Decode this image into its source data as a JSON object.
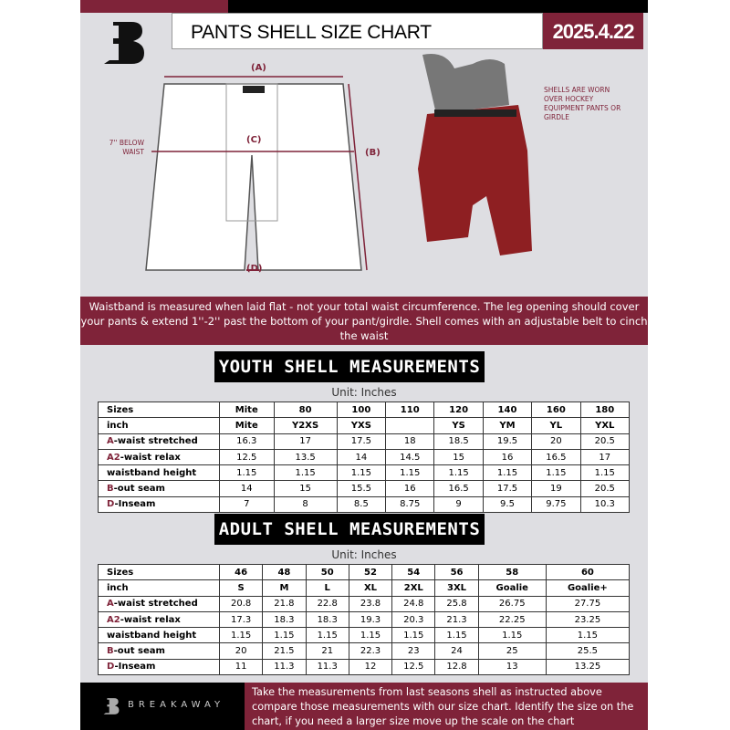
{
  "header": {
    "title": "PANTS SHELL SIZE CHART",
    "date": "2025.4.22"
  },
  "diagram": {
    "label_a": "(A)",
    "label_b": "(B)",
    "label_c": "(C)",
    "label_d": "(D)",
    "below_waist_note": "7'' BELOW WAIST",
    "worn_note": "SHELLS ARE WORN OVER HOCKEY EQUIPMENT PANTS OR GIRDLE"
  },
  "banner": {
    "text": "Waistband is measured when laid flat - not your total waist circumference. The leg opening should cover your pants & extend 1''-2'' past the bottom of your pant/girdle. Shell comes with an adjustable belt to cinch the waist"
  },
  "youth": {
    "title": "YOUTH SHELL MEASUREMENTS",
    "unit": "Unit: Inches",
    "rows": [
      {
        "p": "",
        "l": "Sizes",
        "v": [
          "Mite",
          "80",
          "100",
          "110",
          "120",
          "140",
          "160",
          "180"
        ]
      },
      {
        "p": "",
        "l": "inch",
        "v": [
          "Mite",
          "Y2XS",
          "YXS",
          "",
          "YS",
          "YM",
          "YL",
          "YXL"
        ]
      },
      {
        "p": "A",
        "l": "-waist stretched",
        "v": [
          "16.3",
          "17",
          "17.5",
          "18",
          "18.5",
          "19.5",
          "20",
          "20.5"
        ]
      },
      {
        "p": "A2",
        "l": "-waist relax",
        "v": [
          "12.5",
          "13.5",
          "14",
          "14.5",
          "15",
          "16",
          "16.5",
          "17"
        ]
      },
      {
        "p": "",
        "l": "waistband height",
        "v": [
          "1.15",
          "1.15",
          "1.15",
          "1.15",
          "1.15",
          "1.15",
          "1.15",
          "1.15"
        ]
      },
      {
        "p": "B",
        "l": "-out seam",
        "v": [
          "14",
          "15",
          "15.5",
          "16",
          "16.5",
          "17.5",
          "19",
          "20.5"
        ]
      },
      {
        "p": "D",
        "l": "-Inseam",
        "v": [
          "7",
          "8",
          "8.5",
          "8.75",
          "9",
          "9.5",
          "9.75",
          "10.3"
        ]
      }
    ]
  },
  "adult": {
    "title": "ADULT SHELL MEASUREMENTS",
    "unit": "Unit: Inches",
    "rows": [
      {
        "p": "",
        "l": "Sizes",
        "v": [
          "46",
          "48",
          "50",
          "52",
          "54",
          "56",
          "58",
          "60"
        ]
      },
      {
        "p": "",
        "l": "inch",
        "v": [
          "S",
          "M",
          "L",
          "XL",
          "2XL",
          "3XL",
          "Goalie",
          "Goalie+"
        ]
      },
      {
        "p": "A",
        "l": "-waist stretched",
        "v": [
          "20.8",
          "21.8",
          "22.8",
          "23.8",
          "24.8",
          "25.8",
          "26.75",
          "27.75"
        ]
      },
      {
        "p": "A2",
        "l": "-waist relax",
        "v": [
          "17.3",
          "18.3",
          "18.3",
          "19.3",
          "20.3",
          "21.3",
          "22.25",
          "23.25"
        ]
      },
      {
        "p": "",
        "l": "waistband height",
        "v": [
          "1.15",
          "1.15",
          "1.15",
          "1.15",
          "1.15",
          "1.15",
          "1.15",
          "1.15"
        ]
      },
      {
        "p": "B",
        "l": "-out seam",
        "v": [
          "20",
          "21.5",
          "21",
          "22.3",
          "23",
          "24",
          "25",
          "25.5"
        ]
      },
      {
        "p": "D",
        "l": "-Inseam",
        "v": [
          "11",
          "11.3",
          "11.3",
          "12",
          "12.5",
          "12.8",
          "13",
          "13.25"
        ]
      }
    ]
  },
  "footer": {
    "brand": "BREAKAWAY",
    "text": "Take the measurements from last seasons shell as instructed above compare those measurements  with our size chart. Identify the size on the chart, if you need a larger size move up the scale on the chart"
  },
  "colors": {
    "accent": "#7f2339"
  }
}
